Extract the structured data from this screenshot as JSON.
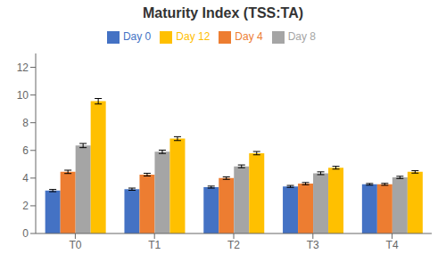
{
  "chart_data": {
    "type": "bar",
    "title": "Maturity Index (TSS:TA)",
    "categories": [
      "T0",
      "T1",
      "T2",
      "T3",
      "T4"
    ],
    "series": [
      {
        "name": "Day 0",
        "color": "#4472C4",
        "values": [
          3.1,
          3.2,
          3.35,
          3.4,
          3.55
        ],
        "errors": [
          0.08,
          0.08,
          0.07,
          0.07,
          0.06
        ]
      },
      {
        "name": "Day 4",
        "color": "#ED7D31",
        "values": [
          4.45,
          4.25,
          4.0,
          3.6,
          3.55
        ],
        "errors": [
          0.12,
          0.1,
          0.09,
          0.08,
          0.07
        ]
      },
      {
        "name": "Day 8",
        "color": "#A5A5A5",
        "values": [
          6.35,
          5.9,
          4.85,
          4.35,
          4.05
        ],
        "errors": [
          0.15,
          0.12,
          0.1,
          0.1,
          0.08
        ]
      },
      {
        "name": "Day 12",
        "color": "#FFC000",
        "values": [
          9.55,
          6.85,
          5.8,
          4.75,
          4.45
        ],
        "errors": [
          0.2,
          0.14,
          0.12,
          0.1,
          0.09
        ]
      }
    ],
    "ylim": [
      0,
      13
    ],
    "yticks": [
      0,
      2,
      4,
      6,
      8,
      10,
      12
    ],
    "grid": false,
    "legend": "top"
  }
}
